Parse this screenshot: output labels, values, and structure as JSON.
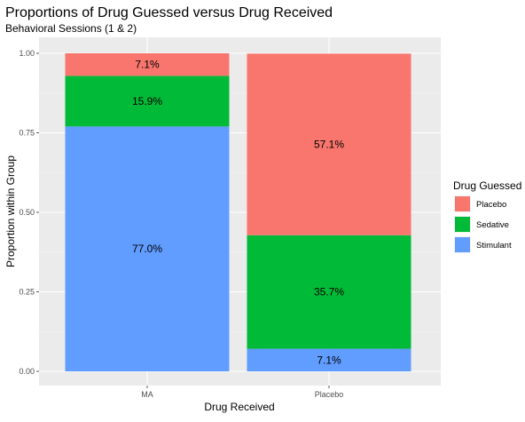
{
  "chart_data": {
    "type": "bar",
    "stacked": true,
    "title": "Proportions of Drug Guessed versus Drug Received",
    "subtitle": "Behavioral Sessions (1 & 2)",
    "xlabel": "Drug Received",
    "ylabel": "Proportion within Group",
    "categories": [
      "MA",
      "Placebo"
    ],
    "ylim": [
      0,
      1
    ],
    "yticks": [
      "0.00",
      "0.25",
      "0.50",
      "0.75",
      "1.00"
    ],
    "ytick_values": [
      0,
      0.25,
      0.5,
      0.75,
      1.0
    ],
    "series": [
      {
        "name": "Stimulant",
        "color": "#619CFF",
        "values": [
          0.77,
          0.071
        ],
        "labels": [
          "77.0%",
          "7.1%"
        ]
      },
      {
        "name": "Sedative",
        "color": "#00BA38",
        "values": [
          0.159,
          0.357
        ],
        "labels": [
          "15.9%",
          "35.7%"
        ]
      },
      {
        "name": "Placebo",
        "color": "#F8766D",
        "values": [
          0.071,
          0.571
        ],
        "labels": [
          "7.1%",
          "57.1%"
        ]
      }
    ],
    "legend": {
      "title": "Drug Guessed",
      "position": "right",
      "order": [
        "Placebo",
        "Sedative",
        "Stimulant"
      ]
    },
    "grid": true,
    "panel_background": "#EBEBEB"
  }
}
